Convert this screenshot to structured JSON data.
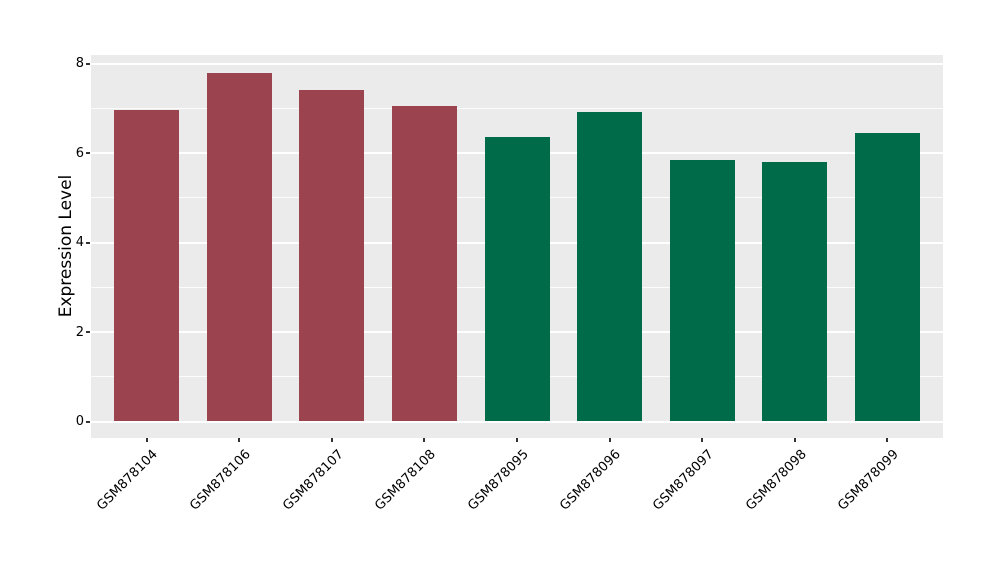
{
  "chart_data": {
    "type": "bar",
    "title": "",
    "xlabel": "",
    "ylabel": "Expression Level",
    "categories": [
      "GSM878104",
      "GSM878106",
      "GSM878107",
      "GSM878108",
      "GSM878095",
      "GSM878096",
      "GSM878097",
      "GSM878098",
      "GSM878099"
    ],
    "values": [
      6.95,
      7.78,
      7.4,
      7.05,
      6.35,
      6.92,
      5.85,
      5.8,
      6.45
    ],
    "bar_colors": [
      "#9B4450",
      "#9B4450",
      "#9B4450",
      "#9B4450",
      "#006B48",
      "#006B48",
      "#006B48",
      "#006B48",
      "#006B48"
    ],
    "group_colors": {
      "left_group": "#9B4450",
      "right_group": "#006B48"
    },
    "ylim": [
      -0.35,
      8.2
    ],
    "yticks": [
      0,
      2,
      4,
      6,
      8
    ],
    "minor_gridlines": [
      1,
      3,
      5,
      7
    ],
    "grid": "on",
    "legend": "none",
    "panel_background": "#EBEBEB",
    "gridline_color": "#FFFFFF"
  }
}
